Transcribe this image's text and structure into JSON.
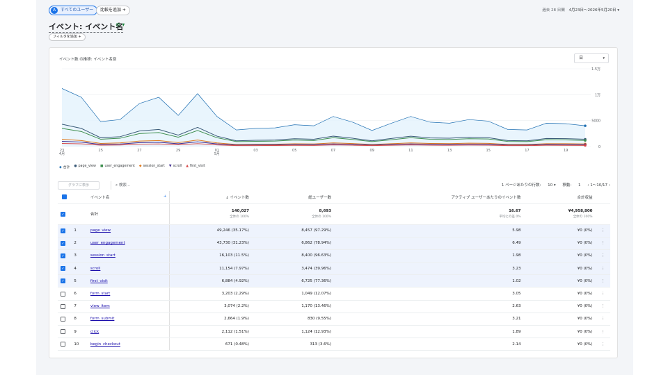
{
  "topbar": {
    "user_chip": "すべてのユーザー",
    "user_chip_icon": "A",
    "compare_chip": "比較を追加 +",
    "date_label": "過去 28 日間",
    "date_range": "4月23日～2026年5月20日 ▾"
  },
  "page": {
    "title": "イベント: イベント名",
    "title_icons": "⊘ ▾",
    "filter_chip": "フィルタを追加 +"
  },
  "chart_card": {
    "title": "イベント数 の推移: イベント名別",
    "granularity": "日",
    "granularity_arrow": "▾"
  },
  "chart_data": {
    "type": "line",
    "x": [
      "23",
      "24",
      "25",
      "26",
      "27",
      "28",
      "29",
      "30",
      "01",
      "02",
      "03",
      "04",
      "05",
      "06",
      "07",
      "08",
      "09",
      "10",
      "11",
      "12",
      "13",
      "14",
      "15",
      "16",
      "17",
      "18",
      "19",
      "20"
    ],
    "x_ticks": [
      "23\n4月",
      "25",
      "27",
      "29",
      "01\n5月",
      "03",
      "05",
      "07",
      "09",
      "11",
      "13",
      "15",
      "17",
      "19"
    ],
    "y_ticks": [
      "1.5万",
      "1万",
      "5000",
      "0"
    ],
    "ylim": [
      0,
      15000
    ],
    "series": [
      {
        "name": "合計",
        "color": "#1f6fb2",
        "fill": "#e3f2fd",
        "values": [
          11200,
          9500,
          4800,
          5200,
          8300,
          9500,
          6000,
          10200,
          5800,
          3200,
          3500,
          3600,
          4200,
          4000,
          5800,
          4700,
          3100,
          4500,
          5800,
          4700,
          4500,
          5200,
          4900,
          3300,
          3200,
          4500,
          4400,
          4000
        ]
      },
      {
        "name": "page_view",
        "color": "#3a5a78",
        "values": [
          4300,
          3500,
          1700,
          1900,
          3000,
          3300,
          2200,
          3700,
          2000,
          1100,
          1200,
          1250,
          1500,
          1400,
          2000,
          1600,
          1100,
          1550,
          2000,
          1650,
          1600,
          1800,
          1700,
          1150,
          1100,
          1550,
          1520,
          1400
        ]
      },
      {
        "name": "user_engagement",
        "color": "#3f8f4f",
        "values": [
          3500,
          2900,
          1400,
          1600,
          2500,
          2700,
          1800,
          3100,
          1700,
          950,
          1000,
          1050,
          1250,
          1150,
          1700,
          1350,
          950,
          1300,
          1700,
          1400,
          1350,
          1500,
          1450,
          980,
          950,
          1300,
          1280,
          1180
        ]
      },
      {
        "name": "session_start",
        "color": "#e07b1f",
        "values": [
          1400,
          1150,
          600,
          700,
          1050,
          1150,
          750,
          1250,
          700,
          400,
          430,
          450,
          530,
          500,
          700,
          580,
          400,
          560,
          700,
          600,
          570,
          650,
          620,
          410,
          400,
          560,
          550,
          500
        ]
      },
      {
        "name": "scroll",
        "color": "#3b2a8f",
        "values": [
          1000,
          850,
          420,
          480,
          760,
          820,
          540,
          900,
          520,
          290,
          310,
          320,
          380,
          360,
          500,
          420,
          290,
          400,
          500,
          430,
          410,
          460,
          440,
          300,
          290,
          400,
          390,
          360
        ]
      },
      {
        "name": "first_visit",
        "color": "#d64545",
        "values": [
          600,
          520,
          260,
          300,
          460,
          500,
          330,
          550,
          320,
          180,
          190,
          200,
          230,
          220,
          310,
          260,
          180,
          250,
          310,
          260,
          250,
          280,
          270,
          185,
          180,
          250,
          240,
          220
        ]
      }
    ]
  },
  "legend": [
    {
      "label": "合計",
      "marker": "◆",
      "color": "#1f6fb2"
    },
    {
      "label": "page_view",
      "marker": "●",
      "color": "#3a5a78"
    },
    {
      "label": "user_engagement",
      "marker": "■",
      "color": "#3f8f4f"
    },
    {
      "label": "session_start",
      "marker": "◆",
      "color": "#e07b1f"
    },
    {
      "label": "scroll",
      "marker": "▼",
      "color": "#3b2a8f"
    },
    {
      "label": "first_visit",
      "marker": "▲",
      "color": "#d64545"
    }
  ],
  "table_toolbar": {
    "plot_button": "グラフに表示",
    "search_placeholder": "検索...",
    "rows_per_page_label": "1 ページあたりの行数:",
    "rows_per_page": "10 ▾",
    "goto_label": "移動:",
    "goto_value": "1",
    "page_info": "‹  1～10/17  ›"
  },
  "table": {
    "headers": {
      "event_name": "イベント名",
      "event_count": "↓ イベント数",
      "total_users": "総ユーザー数",
      "per_user": "アクティブ ユーザーあたりのイベント数",
      "revenue": "合計収益"
    },
    "add_col": "+",
    "totals": {
      "label": "合計",
      "event_count": "140,027",
      "event_count_sub": "全体の 100%",
      "total_users": "8,693",
      "total_users_sub": "全体の 100%",
      "per_user": "16.67",
      "per_user_sub": "平均との差 0%",
      "revenue": "¥4,958,800",
      "revenue_sub": "全体の 100%"
    },
    "rows": [
      {
        "idx": "1",
        "name": "page_view",
        "count": "49,246 (35.17%)",
        "users": "8,457 (97.29%)",
        "per_user": "5.98",
        "revenue": "¥0 (0%)",
        "checked": true
      },
      {
        "idx": "2",
        "name": "user_engagement",
        "count": "43,730 (31.23%)",
        "users": "6,862 (78.94%)",
        "per_user": "6.49",
        "revenue": "¥0 (0%)",
        "checked": true
      },
      {
        "idx": "3",
        "name": "session_start",
        "count": "16,103 (11.5%)",
        "users": "8,400 (96.63%)",
        "per_user": "1.98",
        "revenue": "¥0 (0%)",
        "checked": true
      },
      {
        "idx": "4",
        "name": "scroll",
        "count": "11,154 (7.97%)",
        "users": "3,474 (39.96%)",
        "per_user": "3.23",
        "revenue": "¥0 (0%)",
        "checked": true
      },
      {
        "idx": "5",
        "name": "first_visit",
        "count": "6,884 (4.92%)",
        "users": "6,725 (77.36%)",
        "per_user": "1.02",
        "revenue": "¥0 (0%)",
        "checked": true
      },
      {
        "idx": "6",
        "name": "form_start",
        "count": "3,203 (2.29%)",
        "users": "1,049 (12.07%)",
        "per_user": "3.05",
        "revenue": "¥0 (0%)",
        "checked": false
      },
      {
        "idx": "7",
        "name": "view_item",
        "count": "3,074 (2.2%)",
        "users": "1,170 (13.46%)",
        "per_user": "2.63",
        "revenue": "¥0 (0%)",
        "checked": false
      },
      {
        "idx": "8",
        "name": "form_submit",
        "count": "2,664 (1.9%)",
        "users": "830 (9.55%)",
        "per_user": "3.21",
        "revenue": "¥0 (0%)",
        "checked": false
      },
      {
        "idx": "9",
        "name": "click",
        "count": "2,112 (1.51%)",
        "users": "1,124 (12.93%)",
        "per_user": "1.89",
        "revenue": "¥0 (0%)",
        "checked": false
      },
      {
        "idx": "10",
        "name": "begin_checkout",
        "count": "671 (0.48%)",
        "users": "313 (3.6%)",
        "per_user": "2.14",
        "revenue": "¥0 (0%)",
        "checked": false
      }
    ],
    "kebab": "⋮"
  }
}
